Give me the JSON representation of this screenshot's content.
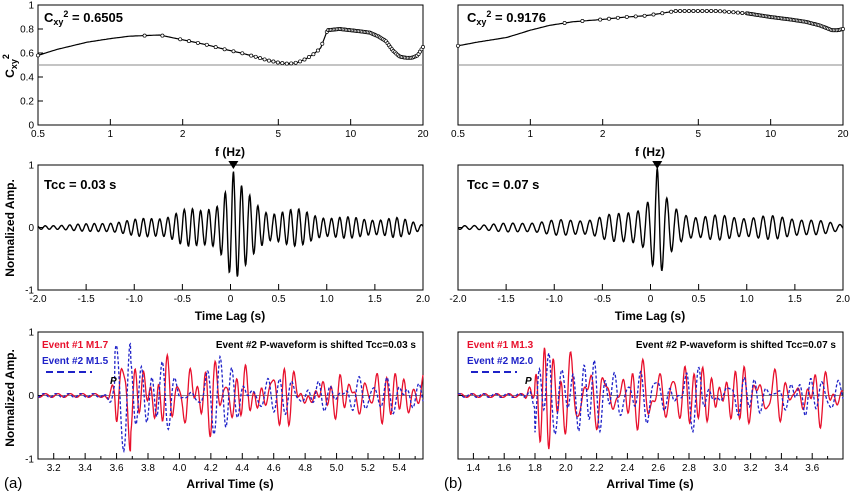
{
  "figure": {
    "left_label": "(a)",
    "right_label": "(b)"
  },
  "chart_data": [
    {
      "id": "coh_a",
      "type": "line",
      "xscale": "log",
      "xlim": [
        0.5,
        20
      ],
      "ylim": [
        0,
        1
      ],
      "xticks": [
        0.5,
        1,
        2,
        5,
        10,
        20
      ],
      "xtick_labels": [
        "0.5",
        "1",
        "2",
        "5",
        "10",
        "20"
      ],
      "yticks": [
        0,
        0.2,
        0.4,
        0.6,
        0.8,
        1
      ],
      "ytick_labels": [
        "0",
        "0.2",
        "0.4",
        "0.6",
        "0.8",
        "1"
      ],
      "xlabel": "f (Hz)",
      "ylabel": "Cxy2",
      "annotation": "Cxy2 = 0.6505",
      "reference_line": 0.5,
      "x": [
        0.5,
        0.6,
        0.8,
        1.0,
        1.2,
        1.6,
        2.0,
        2.5,
        3.0,
        3.5,
        4.0,
        4.5,
        5.0,
        5.5,
        6.0,
        6.5,
        7.0,
        7.5,
        8.0,
        9.0,
        10.0,
        11.0,
        12.0,
        13.0,
        14.0,
        15.0,
        16.0,
        17.0,
        18.0,
        19.0,
        20.0
      ],
      "y": [
        0.58,
        0.63,
        0.69,
        0.72,
        0.74,
        0.75,
        0.71,
        0.67,
        0.63,
        0.6,
        0.57,
        0.54,
        0.52,
        0.51,
        0.52,
        0.55,
        0.59,
        0.64,
        0.79,
        0.8,
        0.79,
        0.78,
        0.77,
        0.74,
        0.7,
        0.62,
        0.57,
        0.56,
        0.56,
        0.58,
        0.65
      ]
    },
    {
      "id": "coh_b",
      "type": "line",
      "xscale": "log",
      "xlim": [
        0.5,
        20
      ],
      "ylim": [
        0,
        1
      ],
      "xticks": [
        0.5,
        1,
        2,
        5,
        10,
        20
      ],
      "xtick_labels": [
        "0.5",
        "1",
        "2",
        "5",
        "10",
        "20"
      ],
      "xlabel": "f (Hz)",
      "annotation": "Cxy2 = 0.9176",
      "reference_line": 0.5,
      "x": [
        0.5,
        0.6,
        0.8,
        1.0,
        1.2,
        1.5,
        2.0,
        2.5,
        3.0,
        3.5,
        4.0,
        5.0,
        6.0,
        7.0,
        8.0,
        10.0,
        12.0,
        14.0,
        16.0,
        17.0,
        18.0,
        19.0,
        20.0
      ],
      "y": [
        0.66,
        0.69,
        0.73,
        0.79,
        0.83,
        0.86,
        0.88,
        0.9,
        0.91,
        0.93,
        0.95,
        0.95,
        0.95,
        0.94,
        0.93,
        0.9,
        0.88,
        0.86,
        0.83,
        0.81,
        0.79,
        0.79,
        0.8
      ]
    },
    {
      "id": "cc_a",
      "type": "line",
      "xlim": [
        -2,
        2
      ],
      "ylim": [
        -1,
        1
      ],
      "xticks": [
        -2,
        -1.5,
        -1,
        -0.5,
        0,
        0.5,
        1,
        1.5,
        2
      ],
      "xtick_labels": [
        "-2.0",
        "-1.5",
        "-1.0",
        "-0.5",
        "0",
        "0.5",
        "1.0",
        "1.5",
        "2.0"
      ],
      "yticks": [
        -1,
        0,
        1
      ],
      "ytick_labels": [
        "-1",
        "0",
        "1"
      ],
      "xlabel": "Time Lag (s)",
      "ylabel": "Normalized Amp.",
      "annotation": "Tcc = 0.03 s",
      "peak_lag": 0.03,
      "peak_value": 1.0,
      "period_s": 0.085,
      "envelope": [
        [
          -2.0,
          0.03
        ],
        [
          -1.5,
          0.06
        ],
        [
          -1.0,
          0.13
        ],
        [
          -0.7,
          0.2
        ],
        [
          -0.5,
          0.3
        ],
        [
          -0.3,
          0.3
        ],
        [
          -0.15,
          0.45
        ],
        [
          -0.05,
          0.75
        ],
        [
          0.03,
          1.0
        ],
        [
          0.1,
          0.7
        ],
        [
          0.25,
          0.45
        ],
        [
          0.4,
          0.3
        ],
        [
          0.7,
          0.3
        ],
        [
          1.0,
          0.2
        ],
        [
          1.4,
          0.15
        ],
        [
          1.7,
          0.18
        ],
        [
          2.0,
          0.05
        ]
      ]
    },
    {
      "id": "cc_b",
      "type": "line",
      "xlim": [
        -2,
        2
      ],
      "ylim": [
        -1,
        1
      ],
      "xticks": [
        -2,
        -1.5,
        -1,
        -0.5,
        0,
        0.5,
        1,
        1.5,
        2
      ],
      "xtick_labels": [
        "-2.0",
        "-1.5",
        "-1.0",
        "-0.5",
        "0",
        "0.5",
        "1.0",
        "1.5",
        "2.0"
      ],
      "xlabel": "Time Lag (s)",
      "annotation": "Tcc = 0.07 s",
      "peak_lag": 0.07,
      "peak_value": 1.0,
      "period_s": 0.1,
      "envelope": [
        [
          -2.0,
          0.03
        ],
        [
          -1.5,
          0.07
        ],
        [
          -1.0,
          0.12
        ],
        [
          -0.6,
          0.16
        ],
        [
          -0.3,
          0.25
        ],
        [
          -0.1,
          0.4
        ],
        [
          0.0,
          0.55
        ],
        [
          0.07,
          1.0
        ],
        [
          0.15,
          0.5
        ],
        [
          0.3,
          0.3
        ],
        [
          0.5,
          0.2
        ],
        [
          1.0,
          0.2
        ],
        [
          1.5,
          0.18
        ],
        [
          2.0,
          0.05
        ]
      ]
    },
    {
      "id": "wf_a",
      "type": "line",
      "xlim": [
        3.1,
        5.55
      ],
      "ylim": [
        -1,
        1
      ],
      "xticks": [
        3.2,
        3.3,
        3.4,
        3.5,
        3.6,
        3.7,
        3.8,
        3.9,
        4.0,
        4.1,
        4.2,
        4.3,
        4.4,
        4.5,
        4.6,
        4.7,
        4.8,
        4.9,
        5.0,
        5.1,
        5.2,
        5.3,
        5.4,
        5.5
      ],
      "xtick_labels": [
        "3.2",
        "",
        "3.4",
        "",
        "3.6",
        "",
        "3.8",
        "",
        "4.0",
        "",
        "4.2",
        "",
        "4.4",
        "",
        "4.6",
        "",
        "4.8",
        "",
        "5.0",
        "",
        "5.2",
        "",
        "5.4",
        ""
      ],
      "yticks": [
        -1,
        0,
        1
      ],
      "ytick_labels": [
        "-1",
        "0",
        "1"
      ],
      "xlabel": "Arrival Time (s)",
      "ylabel": "Normalized Amp.",
      "annotation": "Event #2 P-waveform is shifted Tcc=0.03 s",
      "phase_label": "P",
      "onset": 3.57,
      "series": [
        {
          "name": "Event #1 M1.7",
          "color": "#e8102c",
          "style": "solid",
          "seed": 1
        },
        {
          "name": "Event #2 M1.5",
          "color": "#1f22c8",
          "style": "dashed",
          "seed": 2
        }
      ]
    },
    {
      "id": "wf_b",
      "type": "line",
      "xlim": [
        1.3,
        3.8
      ],
      "ylim": [
        -1,
        1
      ],
      "xticks": [
        1.4,
        1.5,
        1.6,
        1.7,
        1.8,
        1.9,
        2.0,
        2.1,
        2.2,
        2.3,
        2.4,
        2.5,
        2.6,
        2.7,
        2.8,
        2.9,
        3.0,
        3.1,
        3.2,
        3.3,
        3.4,
        3.5,
        3.6,
        3.7
      ],
      "xtick_labels": [
        "1.4",
        "",
        "1.6",
        "",
        "1.8",
        "",
        "2.0",
        "",
        "2.2",
        "",
        "2.4",
        "",
        "2.6",
        "",
        "2.8",
        "",
        "3.0",
        "",
        "3.2",
        "",
        "3.4",
        "",
        "3.6",
        ""
      ],
      "xlabel": "Arrival Time (s)",
      "annotation": "Event #2 P-waveform is shifted Tcc=0.07 s",
      "phase_label": "P",
      "onset": 1.78,
      "series": [
        {
          "name": "Event #1 M1.3",
          "color": "#e8102c",
          "style": "solid",
          "seed": 3
        },
        {
          "name": "Event #2 M2.0",
          "color": "#1f22c8",
          "style": "dashed",
          "seed": 4
        }
      ]
    }
  ]
}
